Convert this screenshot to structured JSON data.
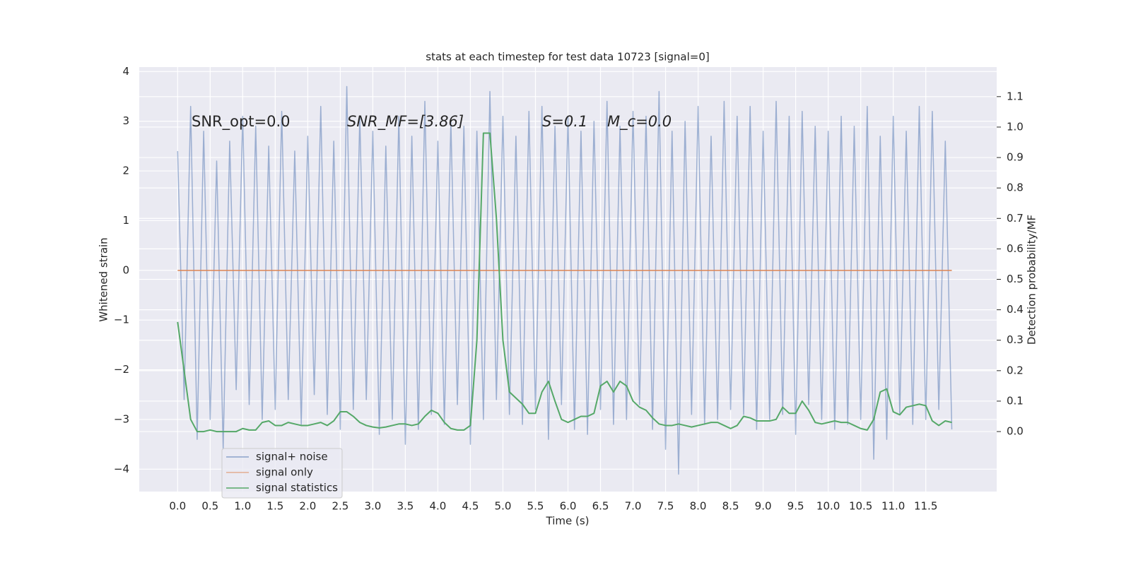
{
  "chart_data": {
    "type": "line",
    "title": "stats at each timestep for test data 10723 [signal=0]",
    "x_label": "Time (s)",
    "y_label": "Whitened strain",
    "y2_label": "Detection probability/MF",
    "annotations": [
      "SNR_opt=0.0",
      "SNR_MF=[3.86]",
      "S=0.1",
      "M_c=0.0"
    ],
    "x": [
      0.0,
      0.1,
      0.2,
      0.3,
      0.4,
      0.5,
      0.6,
      0.7,
      0.8,
      0.9,
      1.0,
      1.1,
      1.2,
      1.3,
      1.4,
      1.5,
      1.6,
      1.7,
      1.8,
      1.9,
      2.0,
      2.1,
      2.2,
      2.3,
      2.4,
      2.5,
      2.6,
      2.7,
      2.8,
      2.9,
      3.0,
      3.1,
      3.2,
      3.3,
      3.4,
      3.5,
      3.6,
      3.7,
      3.8,
      3.9,
      4.0,
      4.1,
      4.2,
      4.3,
      4.4,
      4.5,
      4.6,
      4.7,
      4.8,
      4.9,
      5.0,
      5.1,
      5.2,
      5.3,
      5.4,
      5.5,
      5.6,
      5.7,
      5.8,
      5.9,
      6.0,
      6.1,
      6.2,
      6.3,
      6.4,
      6.5,
      6.6,
      6.7,
      6.8,
      6.9,
      7.0,
      7.1,
      7.2,
      7.3,
      7.4,
      7.5,
      7.6,
      7.7,
      7.8,
      7.9,
      8.0,
      8.1,
      8.2,
      8.3,
      8.4,
      8.5,
      8.6,
      8.7,
      8.8,
      8.9,
      9.0,
      9.1,
      9.2,
      9.3,
      9.4,
      9.5,
      9.6,
      9.7,
      9.8,
      9.9,
      10.0,
      10.1,
      10.2,
      10.3,
      10.4,
      10.5,
      10.6,
      10.7,
      10.8,
      10.9,
      11.0,
      11.1,
      11.2,
      11.3,
      11.4,
      11.5,
      11.6,
      11.7,
      11.8,
      11.9
    ],
    "series": [
      {
        "name": "signal+ noise",
        "color": "#4c72b0",
        "axis": "y",
        "values": [
          2.4,
          -2.6,
          3.3,
          -3.4,
          2.8,
          -3.0,
          2.2,
          -3.6,
          2.6,
          -2.4,
          3.1,
          -2.7,
          2.9,
          -3.0,
          2.5,
          -2.8,
          3.2,
          -2.6,
          2.4,
          -3.1,
          2.7,
          -2.5,
          3.3,
          -2.9,
          2.6,
          -3.2,
          3.7,
          -2.8,
          3.1,
          -2.6,
          2.8,
          -3.3,
          2.5,
          -3.0,
          3.1,
          -3.5,
          2.7,
          -3.2,
          3.4,
          -2.9,
          2.6,
          -3.1,
          3.0,
          -2.7,
          2.9,
          -3.5,
          2.8,
          -3.0,
          3.6,
          -2.6,
          3.1,
          -2.9,
          2.7,
          -3.1,
          3.2,
          -2.8,
          3.3,
          -3.4,
          2.9,
          -2.7,
          3.1,
          -3.2,
          2.8,
          -3.3,
          3.0,
          -2.8,
          3.4,
          -3.1,
          2.9,
          -3.0,
          3.2,
          -2.7,
          3.1,
          -3.2,
          3.6,
          -3.6,
          2.8,
          -4.1,
          3.0,
          -2.9,
          3.3,
          -3.1,
          2.7,
          -3.0,
          3.4,
          -2.8,
          3.1,
          -2.9,
          3.3,
          -3.2,
          2.8,
          -3.0,
          3.4,
          -2.9,
          3.1,
          -3.3,
          3.2,
          -2.7,
          2.9,
          -3.0,
          2.8,
          -3.2,
          3.1,
          -3.1,
          2.9,
          -3.0,
          3.3,
          -3.8,
          2.7,
          -3.4,
          3.1,
          -2.9,
          2.8,
          -3.1,
          3.3,
          -3.0,
          3.2,
          -2.8,
          2.6,
          -3.2
        ]
      },
      {
        "name": "signal only",
        "color": "#dd8452",
        "axis": "y",
        "x": [
          0.0,
          11.9
        ],
        "values": [
          0,
          0
        ]
      },
      {
        "name": "signal statistics",
        "color": "#55a868",
        "axis": "y2",
        "values": [
          0.36,
          0.2,
          0.04,
          0.0,
          0.0,
          0.005,
          0.0,
          0.0,
          0.0,
          0.0,
          0.01,
          0.005,
          0.005,
          0.03,
          0.035,
          0.02,
          0.02,
          0.03,
          0.025,
          0.02,
          0.02,
          0.025,
          0.03,
          0.02,
          0.035,
          0.065,
          0.065,
          0.05,
          0.03,
          0.02,
          0.015,
          0.012,
          0.015,
          0.02,
          0.025,
          0.025,
          0.02,
          0.025,
          0.05,
          0.07,
          0.06,
          0.03,
          0.01,
          0.005,
          0.005,
          0.02,
          0.3,
          0.98,
          0.98,
          0.7,
          0.3,
          0.13,
          0.11,
          0.09,
          0.06,
          0.06,
          0.13,
          0.165,
          0.1,
          0.04,
          0.03,
          0.04,
          0.05,
          0.05,
          0.06,
          0.15,
          0.165,
          0.13,
          0.165,
          0.15,
          0.1,
          0.08,
          0.07,
          0.045,
          0.025,
          0.02,
          0.02,
          0.025,
          0.02,
          0.015,
          0.02,
          0.025,
          0.03,
          0.03,
          0.02,
          0.01,
          0.02,
          0.05,
          0.045,
          0.035,
          0.035,
          0.035,
          0.04,
          0.08,
          0.06,
          0.06,
          0.1,
          0.07,
          0.03,
          0.025,
          0.03,
          0.035,
          0.03,
          0.03,
          0.02,
          0.01,
          0.005,
          0.04,
          0.13,
          0.14,
          0.065,
          0.055,
          0.08,
          0.085,
          0.09,
          0.085,
          0.035,
          0.02,
          0.035,
          0.03
        ]
      }
    ],
    "xlim": [
      -0.59,
      12.59
    ],
    "ylim": [
      -4.45,
      4.09
    ],
    "y2lim": [
      -0.197,
      1.197
    ],
    "xticks": [
      {
        "value": 0,
        "label": "0.0"
      },
      {
        "value": 0.5,
        "label": "0.5"
      },
      {
        "value": 1,
        "label": "1.0"
      },
      {
        "value": 1.5,
        "label": "1.5"
      },
      {
        "value": 2,
        "label": "2.0"
      },
      {
        "value": 2.5,
        "label": "2.5"
      },
      {
        "value": 3,
        "label": "3.0"
      },
      {
        "value": 3.5,
        "label": "3.5"
      },
      {
        "value": 4,
        "label": "4.0"
      },
      {
        "value": 4.5,
        "label": "4.5"
      },
      {
        "value": 5,
        "label": "5.0"
      },
      {
        "value": 5.5,
        "label": "5.5"
      },
      {
        "value": 6,
        "label": "6.0"
      },
      {
        "value": 6.5,
        "label": "6.5"
      },
      {
        "value": 7,
        "label": "7.0"
      },
      {
        "value": 7.5,
        "label": "7.5"
      },
      {
        "value": 8,
        "label": "8.0"
      },
      {
        "value": 8.5,
        "label": "8.5"
      },
      {
        "value": 9,
        "label": "9.0"
      },
      {
        "value": 9.5,
        "label": "9.5"
      },
      {
        "value": 10,
        "label": "10.0"
      },
      {
        "value": 10.5,
        "label": "10.5"
      },
      {
        "value": 11,
        "label": "11.0"
      },
      {
        "value": 11.5,
        "label": "11.5"
      }
    ],
    "yticks": [
      {
        "value": -4,
        "label": "−4"
      },
      {
        "value": -3,
        "label": "−3"
      },
      {
        "value": -2,
        "label": "−2"
      },
      {
        "value": -1,
        "label": "−1"
      },
      0,
      1,
      2,
      3,
      4
    ],
    "y2ticks": [
      {
        "value": 0,
        "label": "0.0"
      },
      {
        "value": 0.1,
        "label": "0.1"
      },
      {
        "value": 0.2,
        "label": "0.2"
      },
      {
        "value": 0.3,
        "label": "0.3"
      },
      {
        "value": 0.4,
        "label": "0.4"
      },
      {
        "value": 0.5,
        "label": "0.5"
      },
      {
        "value": 0.6,
        "label": "0.6"
      },
      {
        "value": 0.7,
        "label": "0.7"
      },
      {
        "value": 0.8,
        "label": "0.8"
      },
      {
        "value": 0.9,
        "label": "0.9"
      },
      {
        "value": 1,
        "label": "1.0"
      },
      {
        "value": 1.1,
        "label": "1.1"
      }
    ],
    "grid": true,
    "legend": "lower left"
  }
}
